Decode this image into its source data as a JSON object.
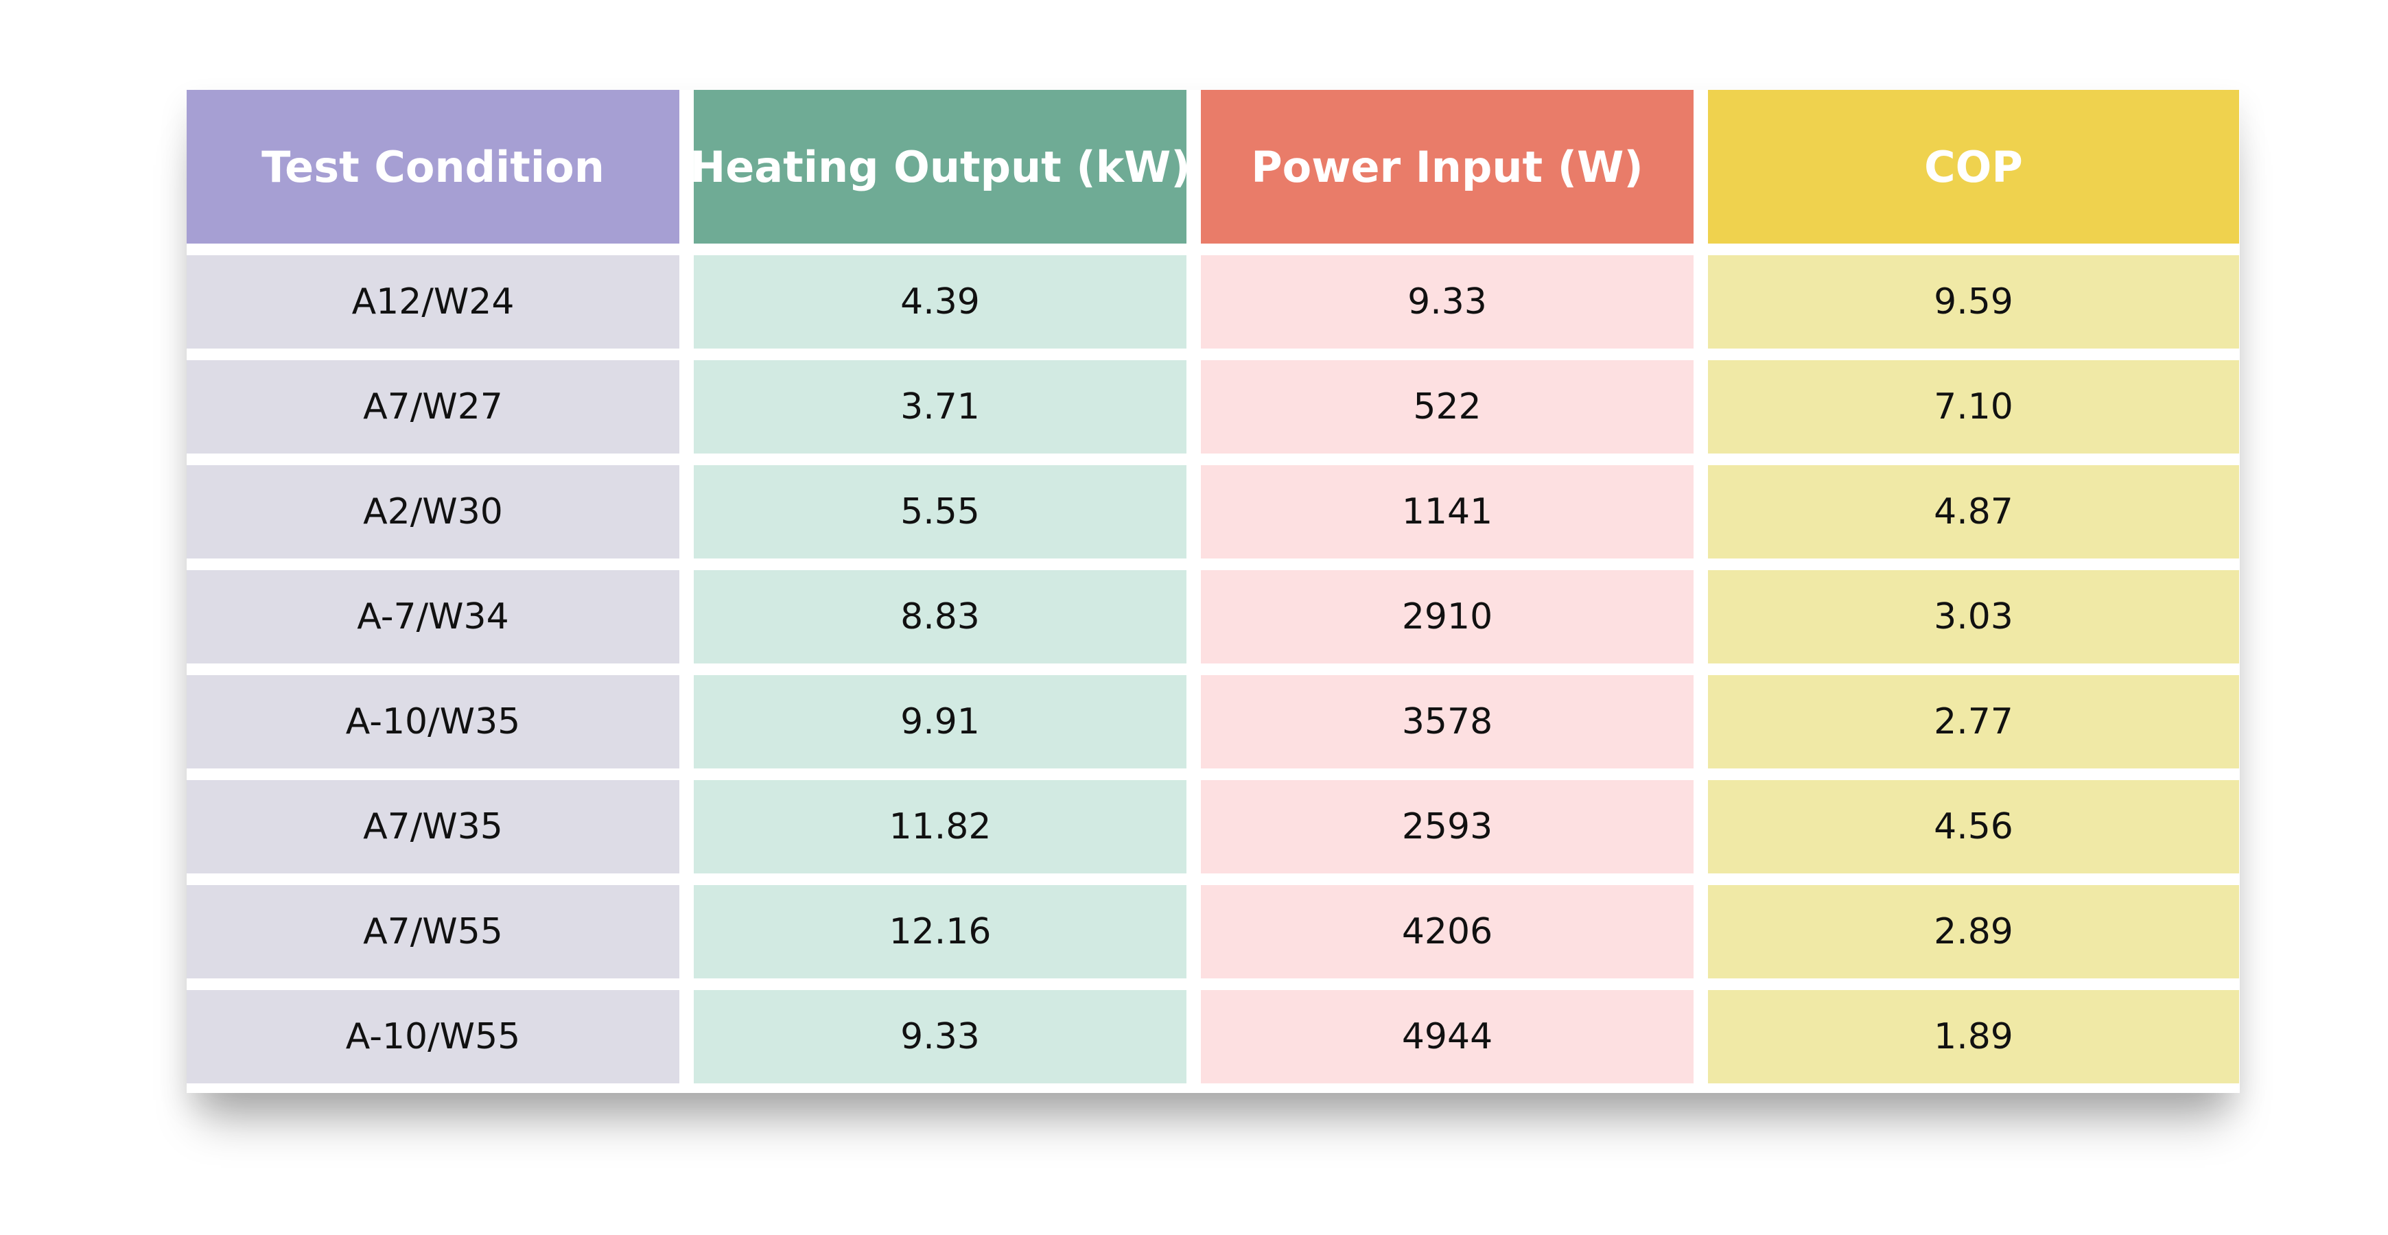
{
  "chart_data": {
    "type": "table",
    "columns": [
      {
        "label": "Test Condition",
        "header_color": "#a69fd3",
        "cell_color": "#dddce6"
      },
      {
        "label": "Heating Output (kW)",
        "header_color": "#6fab95",
        "cell_color": "#d2eae2"
      },
      {
        "label": "Power Input (W)",
        "header_color": "#e97c69",
        "cell_color": "#fde0e1"
      },
      {
        "label": "COP",
        "header_color": "#efd24e",
        "cell_color": "#f0e9a6"
      }
    ],
    "rows": [
      [
        "A12/W24",
        "4.39",
        "9.33",
        "9.59"
      ],
      [
        "A7/W27",
        "3.71",
        "522",
        "7.10"
      ],
      [
        "A2/W30",
        "5.55",
        "1141",
        "4.87"
      ],
      [
        "A-7/W34",
        "8.83",
        "2910",
        "3.03"
      ],
      [
        "A-10/W35",
        "9.91",
        "3578",
        "2.77"
      ],
      [
        "A7/W35",
        "11.82",
        "2593",
        "4.56"
      ],
      [
        "A7/W55",
        "12.16",
        "4206",
        "2.89"
      ],
      [
        "A-10/W55",
        "9.33",
        "4944",
        "1.89"
      ]
    ]
  }
}
